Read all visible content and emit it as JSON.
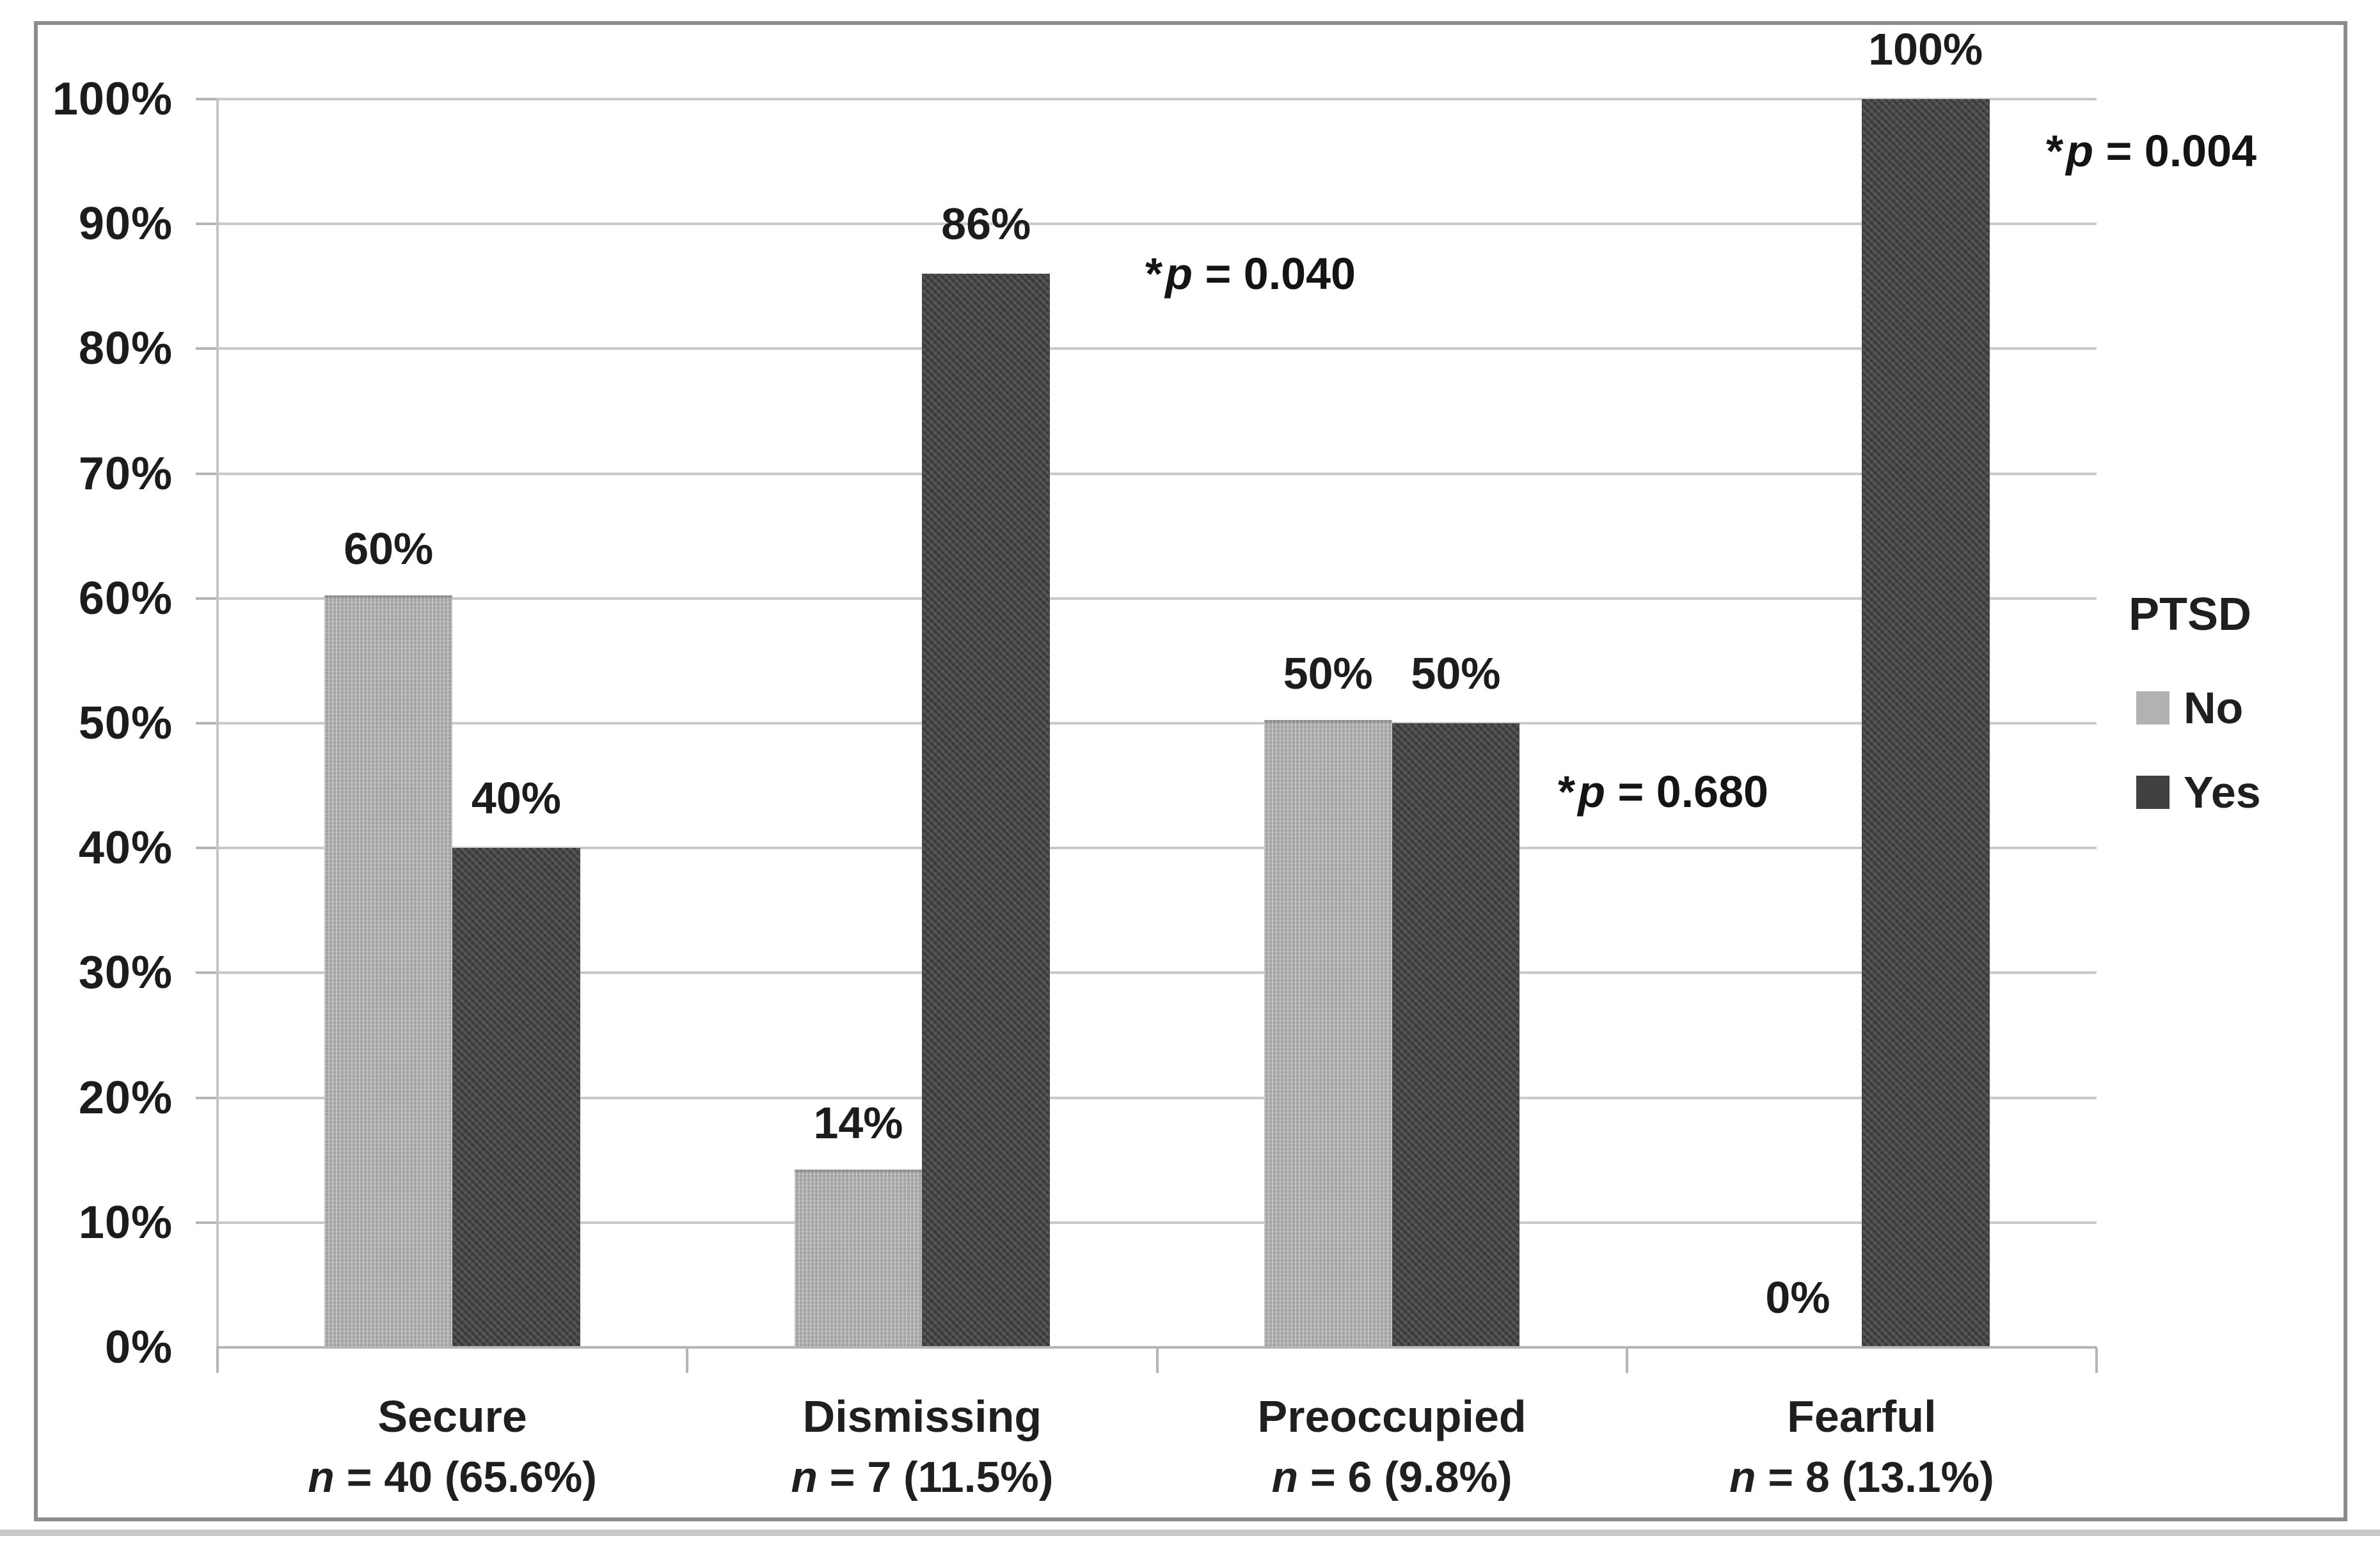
{
  "chart_data": {
    "type": "bar",
    "title": "",
    "categories": [
      "Secure",
      "Dismissing",
      "Preoccupied",
      "Fearful"
    ],
    "category_count_labels": [
      {
        "symbol": "n",
        "text": " = 40 (65.6%)"
      },
      {
        "symbol": "n",
        "text": " = 7 (11.5%)"
      },
      {
        "symbol": "n",
        "text": " = 6 (9.8%)"
      },
      {
        "symbol": "n",
        "text": " = 8 (13.1%)"
      }
    ],
    "series": [
      {
        "name": "No",
        "color": "#b2b2b2",
        "values": [
          60,
          14,
          50,
          0
        ]
      },
      {
        "name": "Yes",
        "color": "#414141",
        "values": [
          40,
          86,
          50,
          100
        ]
      }
    ],
    "value_labels": {
      "no": [
        "60%",
        "14%",
        "50%",
        "0%"
      ],
      "yes": [
        "40%",
        "86%",
        "50%",
        "100%"
      ]
    },
    "p_annotations": [
      {
        "star": "*",
        "symbol": "p",
        "text": " = 0.040",
        "category": "Dismissing"
      },
      {
        "star": "*",
        "symbol": "p",
        "text": " = 0.680",
        "category": "Preoccupied"
      },
      {
        "star": "*",
        "symbol": "p",
        "text": " = 0.004",
        "category": "Fearful"
      }
    ],
    "y_axis": {
      "min": 0,
      "max": 100,
      "tick_step": 10,
      "unit": "%",
      "grid": true,
      "tick_labels": [
        "0%",
        "10%",
        "20%",
        "30%",
        "40%",
        "50%",
        "60%",
        "70%",
        "80%",
        "90%",
        "100%"
      ]
    },
    "legend": {
      "title": "PTSD",
      "position": "right",
      "entries": [
        {
          "label": "No",
          "color": "#b2b2b2"
        },
        {
          "label": "Yes",
          "color": "#414141"
        }
      ]
    }
  }
}
